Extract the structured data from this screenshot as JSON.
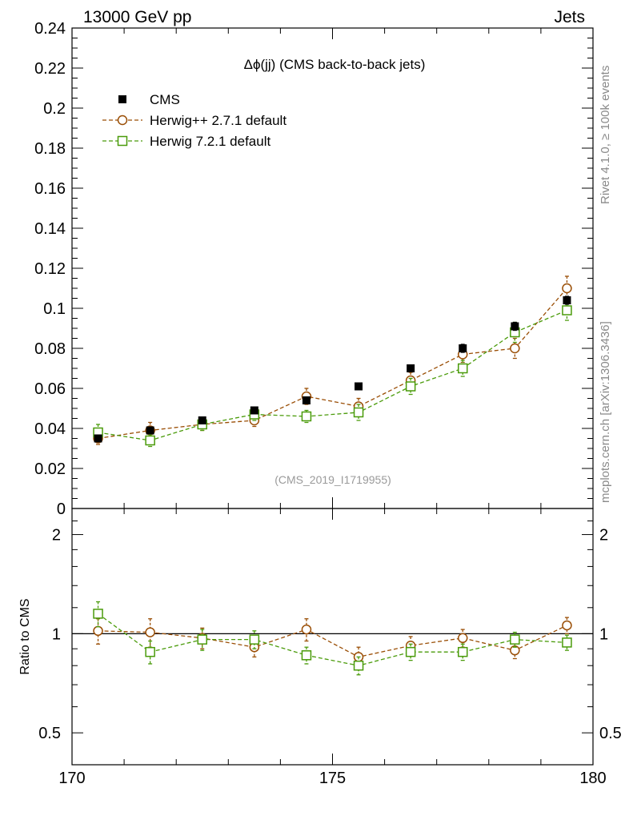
{
  "header": {
    "left_label": "13000 GeV pp",
    "right_label": "Jets",
    "plot_title": "Δϕ(jj) (CMS back-to-back jets)",
    "watermark": "(CMS_2019_I1719955)",
    "side_label_top": "Rivet 4.1.0, ≥ 100k events",
    "side_label_bottom": "mcplots.cern.ch [arXiv:1306.3436]"
  },
  "chart_data": {
    "type": "scatter",
    "x": [
      170.5,
      171.5,
      172.5,
      173.5,
      174.5,
      175.5,
      176.5,
      177.5,
      178.5,
      179.5
    ],
    "xlim": [
      170,
      180
    ],
    "xticks": [
      170,
      175,
      180
    ],
    "xtick_labels": [
      "170",
      "175",
      "180"
    ],
    "main": {
      "ylim": [
        0,
        0.24
      ],
      "yticks": [
        0,
        0.02,
        0.04,
        0.06,
        0.08,
        0.1,
        0.12,
        0.14,
        0.16,
        0.18,
        0.2,
        0.22,
        0.24
      ],
      "ytick_labels": [
        "0",
        "0.02",
        "0.04",
        "0.06",
        "0.08",
        "0.1",
        "0.12",
        "0.14",
        "0.16",
        "0.18",
        "0.2",
        "0.22",
        "0.24"
      ]
    },
    "ratio": {
      "ylabel": "Ratio to CMS",
      "ylim": [
        0.4,
        2.4
      ],
      "log": true,
      "yticks": [
        0.5,
        1,
        2
      ],
      "ytick_labels": [
        "0.5",
        "1",
        "2"
      ],
      "reference": 1
    },
    "series": [
      {
        "name": "CMS",
        "marker": "filled-square",
        "color": "#000000",
        "dashed": false,
        "values": [
          0.035,
          0.039,
          0.044,
          0.049,
          0.054,
          0.061,
          0.07,
          0.08,
          0.091,
          0.104
        ],
        "errors": [
          0.001,
          0.001,
          0.001,
          0.001,
          0.001,
          0.001,
          0.001,
          0.002,
          0.002,
          0.002
        ],
        "ratio": [
          1,
          1,
          1,
          1,
          1,
          1,
          1,
          1,
          1,
          1
        ]
      },
      {
        "name": "Herwig++ 2.7.1 default",
        "marker": "open-circle",
        "color": "#9a4e05",
        "dashed": true,
        "values": [
          0.035,
          0.039,
          0.042,
          0.044,
          0.056,
          0.051,
          0.064,
          0.077,
          0.08,
          0.11
        ],
        "errors": [
          0.003,
          0.004,
          0.003,
          0.003,
          0.004,
          0.004,
          0.004,
          0.004,
          0.005,
          0.006
        ],
        "ratio": [
          1.02,
          1.01,
          0.97,
          0.91,
          1.03,
          0.85,
          0.92,
          0.97,
          0.89,
          1.06
        ],
        "ratio_errors": [
          0.09,
          0.1,
          0.07,
          0.06,
          0.08,
          0.06,
          0.06,
          0.06,
          0.05,
          0.06
        ]
      },
      {
        "name": "Herwig 7.2.1 default",
        "marker": "open-square",
        "color": "#4a9b0a",
        "dashed": true,
        "values": [
          0.038,
          0.034,
          0.042,
          0.047,
          0.046,
          0.048,
          0.061,
          0.07,
          0.088,
          0.099
        ],
        "errors": [
          0.004,
          0.003,
          0.003,
          0.003,
          0.003,
          0.004,
          0.004,
          0.004,
          0.005,
          0.005
        ],
        "ratio": [
          1.15,
          0.88,
          0.96,
          0.96,
          0.86,
          0.8,
          0.88,
          0.88,
          0.96,
          0.94
        ],
        "ratio_errors": [
          0.1,
          0.07,
          0.07,
          0.06,
          0.05,
          0.05,
          0.05,
          0.05,
          0.05,
          0.05
        ]
      }
    ]
  }
}
